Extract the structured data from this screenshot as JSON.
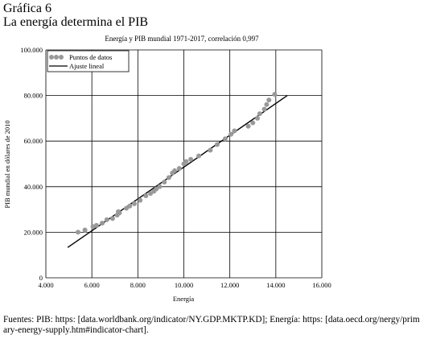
{
  "heading": {
    "figure_label": "Gráfica 6",
    "title": "La energía determina el PIB"
  },
  "chart_data": {
    "type": "scatter",
    "title": "Energía y PIB mundial 1971-2017, correlación 0,997",
    "xlabel": "Energía",
    "ylabel": "PIB mundial en dólares de 2010",
    "xlim": [
      4000,
      16000
    ],
    "ylim": [
      0,
      100000
    ],
    "xticks": [
      4000,
      6000,
      8000,
      10000,
      12000,
      14000,
      16000
    ],
    "yticks": [
      0,
      20000,
      40000,
      60000,
      80000,
      100000
    ],
    "xtick_labels": [
      "4.000",
      "6.000",
      "8.000",
      "10.000",
      "12.000",
      "14.000",
      "16.000"
    ],
    "ytick_labels": [
      "0",
      "20.000",
      "40.000",
      "60.000",
      "80.000",
      "100.000"
    ],
    "grid": true,
    "legend_position": "top-left",
    "series": [
      {
        "name": "Puntos de datos",
        "kind": "scatter",
        "color": "#999999",
        "x": [
          5400,
          5700,
          6050,
          6200,
          6450,
          6650,
          6900,
          7100,
          7150,
          7200,
          7500,
          7650,
          7850,
          8100,
          8350,
          8550,
          8700,
          8800,
          8950,
          9150,
          9350,
          9500,
          9600,
          9800,
          10000,
          10100,
          10300,
          10650,
          11150,
          11450,
          11800,
          12050,
          12200,
          12800,
          13000,
          13200,
          13300,
          13500,
          13600,
          13700,
          13950
        ],
        "y": [
          20000,
          21000,
          22500,
          23000,
          24000,
          25500,
          26000,
          27500,
          29000,
          28500,
          30500,
          31500,
          32500,
          34000,
          36000,
          37000,
          38000,
          39000,
          40000,
          42000,
          44000,
          46000,
          47000,
          48000,
          50000,
          51000,
          52000,
          53500,
          56000,
          58500,
          61000,
          63000,
          64500,
          66500,
          68000,
          70000,
          72000,
          74000,
          76000,
          78000,
          80500
        ]
      },
      {
        "name": "Ajuste lineal",
        "kind": "line",
        "color": "#000000",
        "x": [
          4950,
          14500
        ],
        "y": [
          13300,
          80000
        ]
      }
    ]
  },
  "footer": {
    "sources": "Fuentes: PIB: https: [data.worldbank.org/indicator/NY.GDP.MKTP.KD]; Energía: https: [data.oecd.org/nergy/primary-energy-supply.htm#indicator-chart]."
  }
}
